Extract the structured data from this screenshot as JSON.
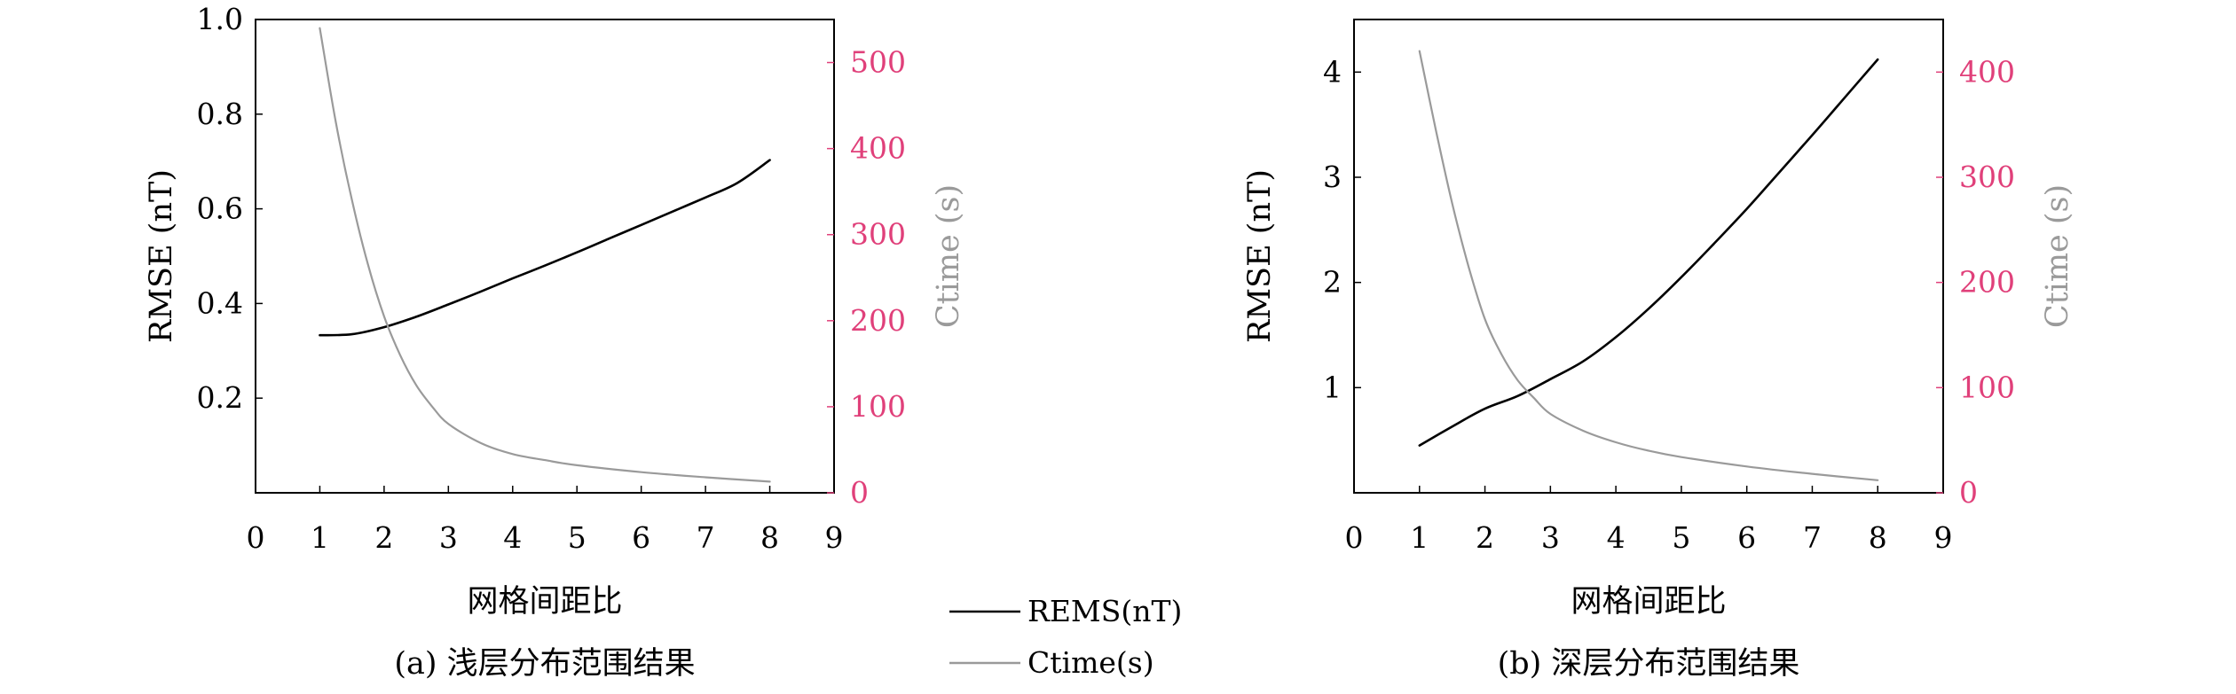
{
  "colors": {
    "rmse_line": "#000000",
    "ctime_line": "#9a9a9a",
    "right_axis": "#e0407a",
    "right_label": "#9a9a9a",
    "axis": "#000000"
  },
  "legend": {
    "placement": "bottom-center",
    "items": [
      {
        "label": "REMS(nT)",
        "series": "rmse"
      },
      {
        "label": "Ctime(s)",
        "series": "ctime"
      }
    ]
  },
  "chart_data": [
    {
      "type": "line",
      "caption": "(a) 浅层分布范围结果",
      "xlabel": "网格间距比",
      "ylabel": "RMSE (nT)",
      "y2label": "Ctime (s)",
      "xlim": [
        0,
        9
      ],
      "xticks": [
        0,
        1,
        2,
        3,
        4,
        5,
        6,
        7,
        8,
        9
      ],
      "ylim": [
        0,
        1.0
      ],
      "yticks": [
        "0.2",
        "0.4",
        "0.6",
        "0.8",
        "1.0"
      ],
      "y2lim": [
        0,
        550
      ],
      "y2ticks": [
        "0",
        "100",
        "200",
        "300",
        "400",
        "500"
      ],
      "grid": false,
      "series": [
        {
          "key": "rmse",
          "axis": "left",
          "x": [
            1,
            1.5,
            2,
            2.5,
            3,
            3.5,
            4,
            4.5,
            5,
            5.5,
            6,
            6.5,
            7,
            7.5,
            8
          ],
          "y": [
            0.333,
            0.335,
            0.35,
            0.372,
            0.398,
            0.425,
            0.453,
            0.48,
            0.508,
            0.537,
            0.566,
            0.595,
            0.624,
            0.655,
            0.703
          ]
        },
        {
          "key": "ctime",
          "axis": "right",
          "x": [
            1,
            1.25,
            1.5,
            1.75,
            2,
            2.25,
            2.5,
            2.75,
            3,
            3.5,
            4,
            4.5,
            5,
            6,
            7,
            8
          ],
          "y": [
            540,
            430,
            340,
            265,
            205,
            160,
            125,
            100,
            80,
            58,
            45,
            38,
            32,
            24,
            18,
            13
          ]
        }
      ]
    },
    {
      "type": "line",
      "caption": "(b) 深层分布范围结果",
      "xlabel": "网格间距比",
      "ylabel": "RMSE (nT)",
      "y2label": "Ctime (s)",
      "xlim": [
        0,
        9
      ],
      "xticks": [
        0,
        1,
        2,
        3,
        4,
        5,
        6,
        7,
        8,
        9
      ],
      "ylim": [
        0,
        4.5
      ],
      "yticks": [
        "1",
        "2",
        "3",
        "4"
      ],
      "y2lim": [
        0,
        450
      ],
      "y2ticks": [
        "0",
        "100",
        "200",
        "300",
        "400"
      ],
      "grid": false,
      "series": [
        {
          "key": "rmse",
          "axis": "left",
          "x": [
            1,
            1.5,
            2,
            2.5,
            3,
            3.5,
            4,
            4.5,
            5,
            5.5,
            6,
            6.5,
            7,
            7.5,
            8
          ],
          "y": [
            0.45,
            0.63,
            0.8,
            0.92,
            1.08,
            1.25,
            1.48,
            1.75,
            2.05,
            2.37,
            2.7,
            3.05,
            3.4,
            3.76,
            4.12
          ]
        },
        {
          "key": "ctime",
          "axis": "right",
          "x": [
            1,
            1.25,
            1.5,
            1.75,
            2,
            2.25,
            2.5,
            2.75,
            3,
            3.5,
            4,
            4.5,
            5,
            6,
            7,
            8
          ],
          "y": [
            420,
            345,
            275,
            215,
            165,
            132,
            107,
            90,
            75,
            59,
            48,
            40,
            34,
            25,
            18,
            12
          ]
        }
      ]
    }
  ]
}
